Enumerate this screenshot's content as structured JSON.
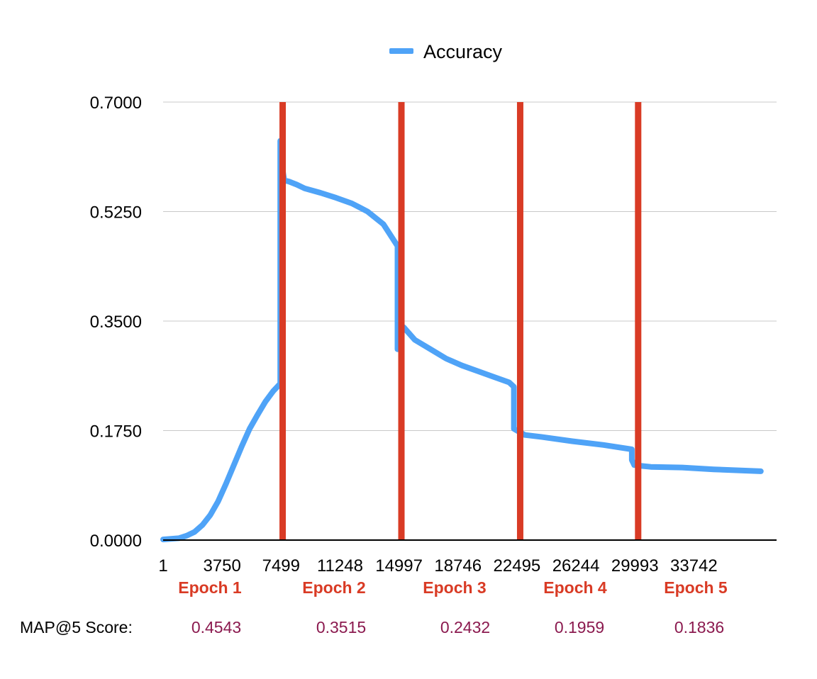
{
  "chart_data": {
    "type": "line",
    "title": "",
    "xlabel": "",
    "ylabel": "",
    "legend": {
      "position": "top-center",
      "entries": [
        "Accuracy"
      ]
    },
    "ylim": [
      0,
      0.7
    ],
    "yticks": [
      "0.0000",
      "0.1750",
      "0.3500",
      "0.5250",
      "0.7000"
    ],
    "ytick_values": [
      0,
      0.175,
      0.35,
      0.525,
      0.7
    ],
    "xlim": [
      1,
      39000
    ],
    "xticks": [
      "1",
      "3750",
      "7499",
      "11248",
      "14997",
      "18746",
      "22495",
      "26244",
      "29993",
      "33742"
    ],
    "xtick_values": [
      1,
      3750,
      7499,
      11248,
      14997,
      18746,
      22495,
      26244,
      29993,
      33742
    ],
    "grid": true,
    "series": [
      {
        "name": "Accuracy",
        "color": "#4fa3f7",
        "points": [
          [
            1,
            0.001
          ],
          [
            1000,
            0.003
          ],
          [
            1500,
            0.007
          ],
          [
            2000,
            0.013
          ],
          [
            2500,
            0.024
          ],
          [
            3000,
            0.04
          ],
          [
            3500,
            0.062
          ],
          [
            4000,
            0.09
          ],
          [
            4500,
            0.12
          ],
          [
            5000,
            0.15
          ],
          [
            5500,
            0.178
          ],
          [
            6000,
            0.2
          ],
          [
            6500,
            0.221
          ],
          [
            7000,
            0.238
          ],
          [
            7450,
            0.25
          ],
          [
            7450,
            0.638
          ],
          [
            7550,
            0.6
          ],
          [
            7700,
            0.575
          ],
          [
            8000,
            0.573
          ],
          [
            8500,
            0.568
          ],
          [
            9000,
            0.562
          ],
          [
            10000,
            0.555
          ],
          [
            11000,
            0.547
          ],
          [
            12000,
            0.538
          ],
          [
            13000,
            0.525
          ],
          [
            14000,
            0.505
          ],
          [
            14900,
            0.47
          ],
          [
            14900,
            0.305
          ],
          [
            15000,
            0.345
          ],
          [
            15300,
            0.34
          ],
          [
            16000,
            0.32
          ],
          [
            17000,
            0.305
          ],
          [
            18000,
            0.29
          ],
          [
            19000,
            0.279
          ],
          [
            20000,
            0.27
          ],
          [
            21000,
            0.261
          ],
          [
            22000,
            0.252
          ],
          [
            22300,
            0.245
          ],
          [
            22300,
            0.178
          ],
          [
            22500,
            0.175
          ],
          [
            23000,
            0.168
          ],
          [
            24000,
            0.165
          ],
          [
            26000,
            0.158
          ],
          [
            28000,
            0.152
          ],
          [
            29800,
            0.145
          ],
          [
            29800,
            0.128
          ],
          [
            29950,
            0.12
          ],
          [
            30200,
            0.119
          ],
          [
            31000,
            0.117
          ],
          [
            33000,
            0.116
          ],
          [
            35000,
            0.113
          ],
          [
            37000,
            0.111
          ],
          [
            38000,
            0.11
          ]
        ]
      }
    ],
    "epoch_markers": {
      "color": "#d93b25",
      "x": [
        7600,
        15150,
        22700,
        30200
      ]
    }
  },
  "epochs": {
    "labels": [
      "Epoch 1",
      "Epoch 2",
      "Epoch 3",
      "Epoch 4",
      "Epoch 5"
    ],
    "color": "#d93b25"
  },
  "scores": {
    "label": "MAP@5 Score:",
    "values": [
      "0.4543",
      "0.3515",
      "0.2432",
      "0.1959",
      "0.1836"
    ],
    "color": "#8b1a4f"
  }
}
